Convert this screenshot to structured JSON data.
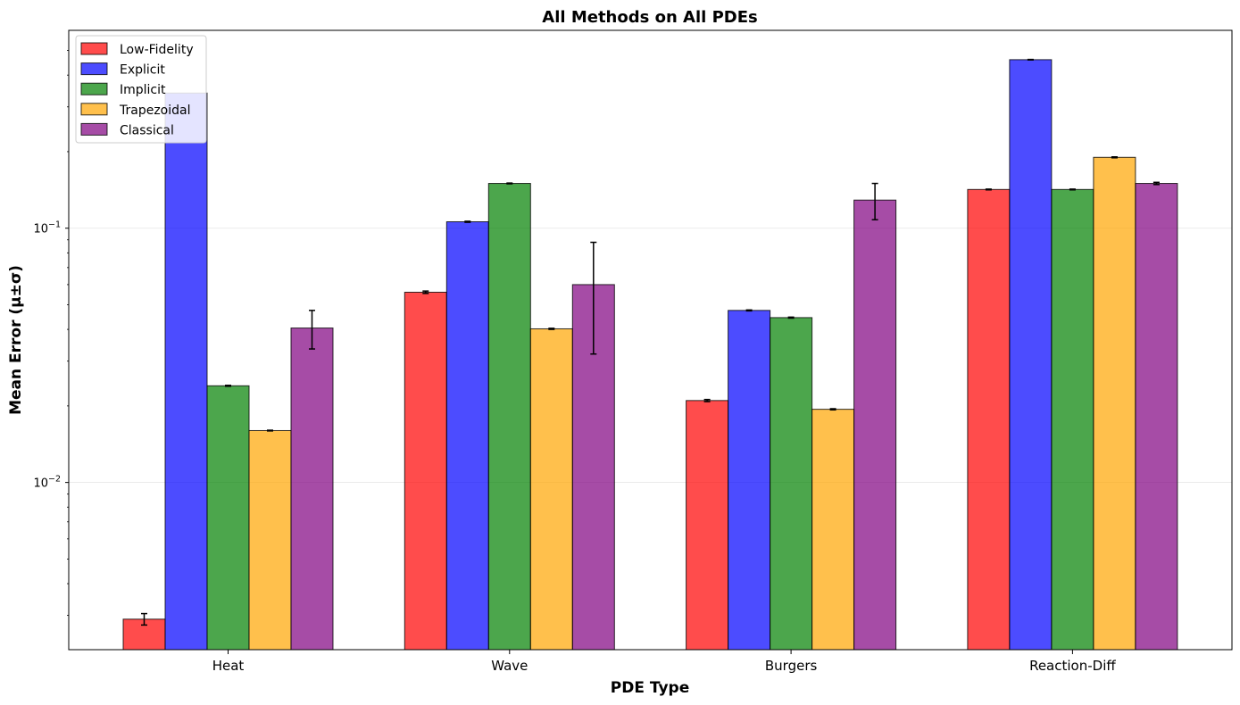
{
  "chart_data": {
    "type": "bar",
    "title": "All Methods on All PDEs",
    "xlabel": "PDE Type",
    "ylabel": "Mean Error (μ±σ)",
    "yscale": "log",
    "ylim": [
      0.0022,
      0.6
    ],
    "y_ticks": [
      {
        "value": 0.01,
        "base": "10",
        "exp": "−2"
      },
      {
        "value": 0.1,
        "base": "10",
        "exp": "−1"
      }
    ],
    "grid": "horizontal major lines",
    "legend_position": "top-left",
    "categories": [
      "Heat",
      "Wave",
      "Burgers",
      "Reaction-Diff"
    ],
    "series": [
      {
        "name": "Low-Fidelity",
        "color": "#ff0000",
        "values": [
          0.0029,
          0.056,
          0.021,
          0.142
        ],
        "errors": [
          0.00015,
          0.0006,
          0.0002,
          0.0005
        ]
      },
      {
        "name": "Explicit",
        "color": "#0000ff",
        "values": [
          0.34,
          0.106,
          0.0475,
          0.46
        ],
        "errors": [
          0.0,
          0.0005,
          0.0002,
          0.001
        ]
      },
      {
        "name": "Implicit",
        "color": "#008000",
        "values": [
          0.024,
          0.15,
          0.0445,
          0.142
        ],
        "errors": [
          0.0001,
          0.0005,
          0.0002,
          0.0005
        ]
      },
      {
        "name": "Trapezoidal",
        "color": "#ffa500",
        "values": [
          0.016,
          0.0402,
          0.0194,
          0.19
        ],
        "errors": [
          5e-05,
          0.0002,
          0.0001,
          0.0008
        ]
      },
      {
        "name": "Classical",
        "color": "#800080",
        "values": [
          0.0405,
          0.06,
          0.129,
          0.15
        ],
        "errors": [
          0.007,
          0.028,
          0.021,
          0.0015
        ]
      }
    ]
  }
}
